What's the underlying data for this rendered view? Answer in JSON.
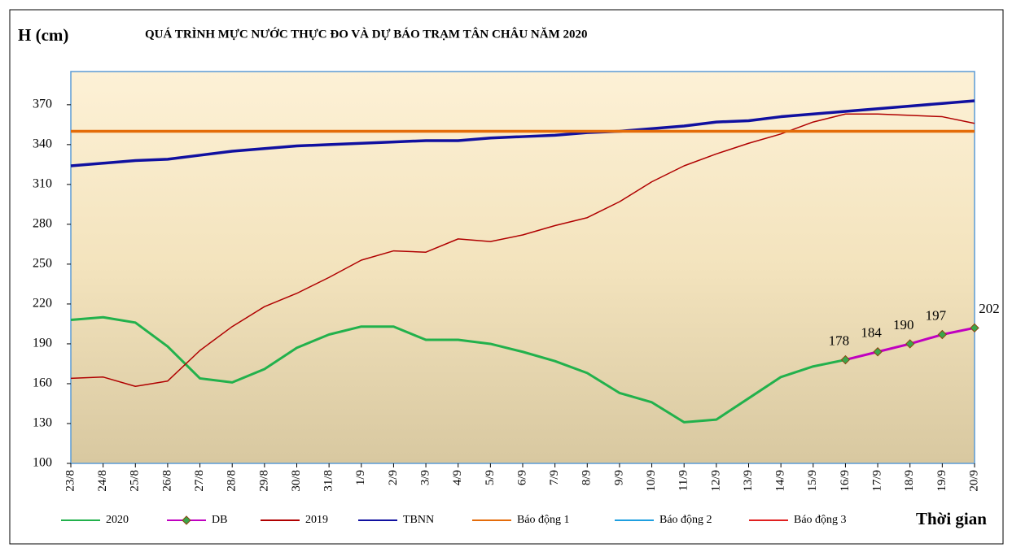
{
  "chart_data": {
    "type": "line",
    "title": "QUÁ TRÌNH MỰC NƯỚC THỰC ĐO VÀ DỰ BÁO TRẠM TÂN CHÂU NĂM 2020",
    "y_label": "H (cm)",
    "x_label": "Thời gian",
    "categories": [
      "23/8",
      "24/8",
      "25/8",
      "26/8",
      "27/8",
      "28/8",
      "29/8",
      "30/8",
      "31/8",
      "1/9",
      "2/9",
      "3/9",
      "4/9",
      "5/9",
      "6/9",
      "7/9",
      "8/9",
      "9/9",
      "10/9",
      "11/9",
      "12/9",
      "13/9",
      "14/9",
      "15/9",
      "16/9",
      "17/9",
      "18/9",
      "19/9",
      "20/9"
    ],
    "ylim": [
      100,
      395
    ],
    "yticks": [
      100,
      130,
      160,
      190,
      220,
      250,
      280,
      310,
      340,
      370
    ],
    "series": [
      {
        "name": "2020",
        "color": "#22b14c",
        "values": [
          208,
          210,
          206,
          188,
          164,
          161,
          171,
          187,
          197,
          203,
          203,
          193,
          193,
          190,
          184,
          177,
          168,
          153,
          146,
          131,
          133,
          149,
          165,
          173,
          178,
          null,
          null,
          null,
          null
        ]
      },
      {
        "name": "DB",
        "color": "#c000c0",
        "marker": true,
        "values": [
          null,
          null,
          null,
          null,
          null,
          null,
          null,
          null,
          null,
          null,
          null,
          null,
          null,
          null,
          null,
          null,
          null,
          null,
          null,
          null,
          null,
          null,
          null,
          null,
          178,
          184,
          190,
          197,
          202
        ]
      },
      {
        "name": "2019",
        "color": "#b00000",
        "values": [
          164,
          165,
          158,
          162,
          185,
          203,
          218,
          228,
          240,
          253,
          260,
          259,
          269,
          267,
          272,
          279,
          285,
          297,
          312,
          324,
          333,
          341,
          348,
          357,
          363,
          363,
          362,
          361,
          356
        ]
      },
      {
        "name": "TBNN",
        "color": "#1010a0",
        "values": [
          324,
          326,
          328,
          329,
          332,
          335,
          337,
          339,
          340,
          341,
          342,
          343,
          343,
          345,
          346,
          347,
          349,
          350,
          352,
          354,
          357,
          358,
          361,
          363,
          365,
          367,
          369,
          371,
          373
        ]
      },
      {
        "name": "Báo động 1",
        "color": "#e46c0a",
        "values": [
          350,
          350,
          350,
          350,
          350,
          350,
          350,
          350,
          350,
          350,
          350,
          350,
          350,
          350,
          350,
          350,
          350,
          350,
          350,
          350,
          350,
          350,
          350,
          350,
          350,
          350,
          350,
          350,
          350
        ]
      },
      {
        "name": "Báo động 2",
        "color": "#1e9fe0",
        "values": [
          null,
          null,
          null,
          null,
          null,
          null,
          null,
          null,
          null,
          null,
          null,
          null,
          null,
          null,
          null,
          null,
          null,
          null,
          null,
          null,
          null,
          null,
          null,
          null,
          null,
          null,
          null,
          null,
          null
        ]
      },
      {
        "name": "Báo động 3",
        "color": "#e02020",
        "values": [
          null,
          null,
          null,
          null,
          null,
          null,
          null,
          null,
          null,
          null,
          null,
          null,
          null,
          null,
          null,
          null,
          null,
          null,
          null,
          null,
          null,
          null,
          null,
          null,
          null,
          null,
          null,
          null,
          null
        ]
      }
    ]
  }
}
